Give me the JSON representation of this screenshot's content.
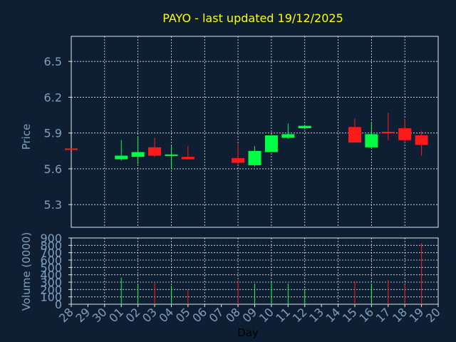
{
  "chart_data": [
    {
      "type": "candlestick",
      "title": "PAYO - last updated 19/12/2025",
      "ylabel": "Price",
      "ylim": [
        5.11,
        6.71
      ],
      "yticks": [
        "6.5",
        "6.2",
        "5.9",
        "5.6",
        "5.3"
      ],
      "grid": true,
      "x": [
        "28",
        "29",
        "30",
        "01",
        "02",
        "03",
        "04",
        "05",
        "06",
        "07",
        "08",
        "09",
        "10",
        "11",
        "12",
        "13",
        "14",
        "15",
        "16",
        "17",
        "18",
        "19",
        "20"
      ],
      "candles": [
        {
          "day": "28",
          "open": 5.77,
          "high": 5.77,
          "low": 5.76,
          "close": 5.76
        },
        {
          "day": "01",
          "open": 5.68,
          "high": 5.84,
          "low": 5.67,
          "close": 5.71
        },
        {
          "day": "02",
          "open": 5.7,
          "high": 5.87,
          "low": 5.64,
          "close": 5.74
        },
        {
          "day": "03",
          "open": 5.78,
          "high": 5.86,
          "low": 5.7,
          "close": 5.71
        },
        {
          "day": "04",
          "open": 5.71,
          "high": 5.79,
          "low": 5.6,
          "close": 5.72
        },
        {
          "day": "05",
          "open": 5.7,
          "high": 5.79,
          "low": 5.68,
          "close": 5.68
        },
        {
          "day": "08",
          "open": 5.69,
          "high": 5.81,
          "low": 5.64,
          "close": 5.65
        },
        {
          "day": "09",
          "open": 5.63,
          "high": 5.79,
          "low": 5.62,
          "close": 5.75
        },
        {
          "day": "10",
          "open": 5.74,
          "high": 5.88,
          "low": 5.74,
          "close": 5.88
        },
        {
          "day": "11",
          "open": 5.86,
          "high": 5.98,
          "low": 5.85,
          "close": 5.89
        },
        {
          "day": "12",
          "open": 5.94,
          "high": 5.97,
          "low": 5.93,
          "close": 5.96
        },
        {
          "day": "15",
          "open": 5.95,
          "high": 6.02,
          "low": 5.82,
          "close": 5.82
        },
        {
          "day": "16",
          "open": 5.78,
          "high": 5.99,
          "low": 5.77,
          "close": 5.89
        },
        {
          "day": "17",
          "open": 5.91,
          "high": 6.07,
          "low": 5.84,
          "close": 5.9
        },
        {
          "day": "18",
          "open": 5.94,
          "high": 6.02,
          "low": 5.82,
          "close": 5.84
        },
        {
          "day": "19",
          "open": 5.88,
          "high": 5.92,
          "low": 5.71,
          "close": 5.8
        }
      ],
      "up_color": "#00ff44",
      "down_color": "#ff1a1a"
    },
    {
      "type": "bar",
      "ylabel": "Volume (0000)",
      "xlabel": "Day",
      "ylim": [
        0,
        900
      ],
      "yticks": [
        "900",
        "800",
        "700",
        "600",
        "500",
        "400",
        "300",
        "200",
        "100",
        "0"
      ],
      "categories": [
        "28",
        "29",
        "30",
        "01",
        "02",
        "03",
        "04",
        "05",
        "06",
        "07",
        "08",
        "09",
        "10",
        "11",
        "12",
        "13",
        "14",
        "15",
        "16",
        "17",
        "18",
        "19",
        "20"
      ],
      "values": [
        0,
        0,
        0,
        360,
        260,
        300,
        250,
        200,
        0,
        0,
        330,
        280,
        300,
        280,
        210,
        0,
        0,
        310,
        280,
        330,
        270,
        830,
        0
      ],
      "colors": [
        "",
        "",
        "",
        "#00ff44",
        "#00ff44",
        "#ff1a1a",
        "#00ff44",
        "#ff1a1a",
        "",
        "",
        "#ff1a1a",
        "#00ff44",
        "#00ff44",
        "#00ff44",
        "#00ff44",
        "",
        "",
        "#ff1a1a",
        "#00ff44",
        "#ff1a1a",
        "#ff1a1a",
        "#ff1a1a",
        ""
      ]
    }
  ],
  "colors": {
    "background": "#0f1f33",
    "title": "#ffff00",
    "axis_text": "#7f9fbf",
    "grid": "#e6e6e6"
  }
}
